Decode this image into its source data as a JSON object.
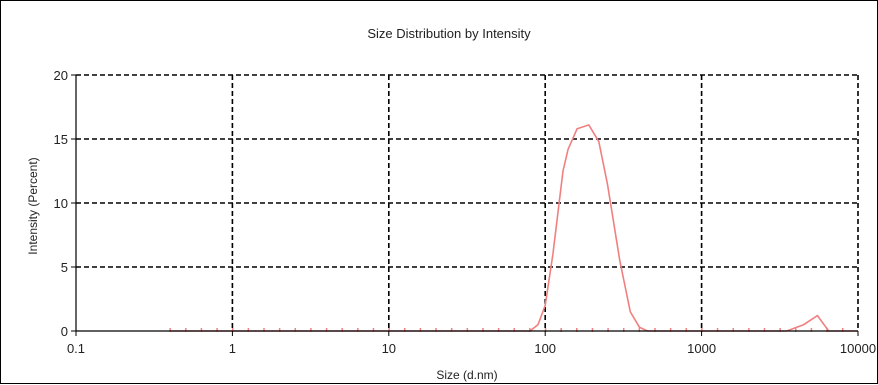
{
  "chart_data": {
    "type": "line",
    "title": "Size Distribution by Intensity",
    "xlabel": "Size (d.nm)",
    "ylabel": "Intensity (Percent)",
    "x_scale": "log",
    "xlim": [
      0.1,
      10000
    ],
    "ylim": [
      0,
      20
    ],
    "x_ticks": [
      0.1,
      1,
      10,
      100,
      1000,
      10000
    ],
    "x_tick_labels": [
      "0.1",
      "1",
      "10",
      "100",
      "1000",
      "10000"
    ],
    "y_ticks": [
      0,
      5,
      10,
      15,
      20
    ],
    "y_tick_labels": [
      "0",
      "5",
      "10",
      "15",
      "20"
    ],
    "grid": true,
    "grid_style": "dashed",
    "series": [
      {
        "color": "#f08080",
        "x": [
          0.4,
          10,
          50,
          80,
          90,
          100,
          112,
          130,
          140,
          160,
          190,
          220,
          250,
          300,
          350,
          400,
          450,
          500,
          1000,
          3500,
          4500,
          5500,
          6500,
          10000
        ],
        "y": [
          0,
          0,
          0,
          0,
          0.5,
          2.0,
          6.0,
          12.5,
          14.2,
          15.8,
          16.1,
          14.8,
          11.5,
          5.5,
          1.5,
          0.3,
          0,
          0,
          0,
          0,
          0.5,
          1.2,
          0,
          0
        ]
      }
    ],
    "point_markers": {
      "x_range": [
        0.4,
        10000
      ],
      "points_per_decade": 10,
      "y": 0,
      "color": "#f08080"
    }
  }
}
